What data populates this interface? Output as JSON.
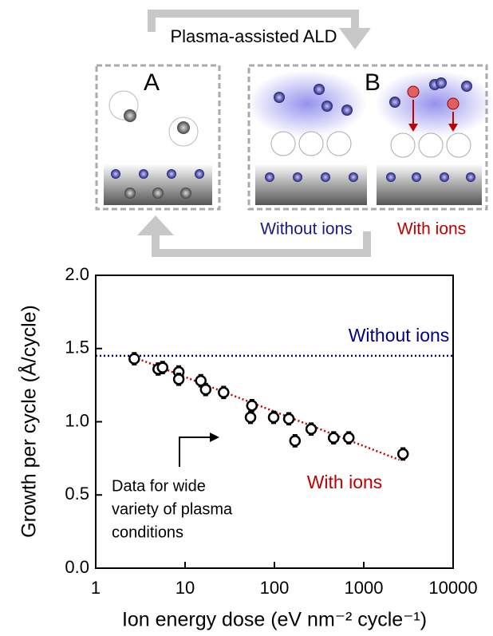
{
  "diagram": {
    "title": "Plasma-assisted ALD",
    "panel_a": "A",
    "panel_b": "B",
    "without_ions": "Without ions",
    "with_ions": "With ions"
  },
  "chart_data": {
    "type": "scatter",
    "xlabel": "Ion energy dose (eV nm⁻² cycle⁻¹)",
    "ylabel": "Growth per cycle (Å/cycle)",
    "xlog": true,
    "xlim": [
      1,
      10000
    ],
    "xticks": [
      1,
      10,
      100,
      1000,
      10000
    ],
    "ylim": [
      0,
      2
    ],
    "yticks": [
      {
        "value": 0,
        "label": "0.0"
      },
      {
        "value": 0.5,
        "label": "0.5"
      },
      {
        "value": 1,
        "label": "1.0"
      },
      {
        "value": 1.5,
        "label": "1.5"
      },
      {
        "value": 2,
        "label": "2.0"
      }
    ],
    "series": [
      {
        "color": "#000000",
        "x": [
          2.7,
          5.0,
          5.6,
          8.5,
          8.5,
          15,
          17,
          27,
          56,
          54,
          98,
          145,
          170,
          258,
          460,
          680,
          2750
        ],
        "values": [
          1.43,
          1.36,
          1.37,
          1.34,
          1.29,
          1.28,
          1.22,
          1.2,
          1.11,
          1.03,
          1.03,
          1.02,
          0.87,
          0.95,
          0.89,
          0.89,
          0.78
        ],
        "errors": [
          0.04,
          0.04,
          0.04,
          0.04,
          0.04,
          0.04,
          0.04,
          0.04,
          0.04,
          0.04,
          0.04,
          0.04,
          0.04,
          0.04,
          0.04,
          0.04,
          0.04
        ]
      }
    ],
    "reference_line": {
      "value": 1.45,
      "color": "#000080",
      "label": "Without ions"
    },
    "trend": {
      "x": [
        2.7,
        2500
      ],
      "values": [
        1.44,
        0.74
      ],
      "color": "#c00000",
      "label": "With ions"
    },
    "note": [
      "Data for wide",
      "variety of plasma",
      "conditions"
    ]
  }
}
